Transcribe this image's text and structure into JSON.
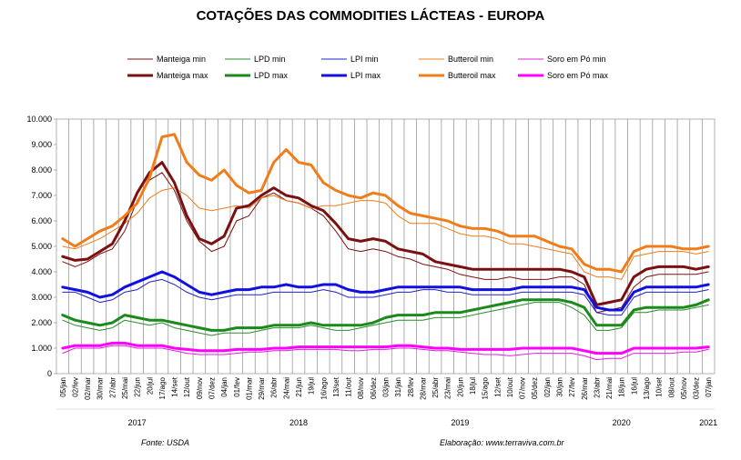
{
  "chart_data": {
    "type": "line",
    "title": "COTAÇÕES DAS COMMODITIES LÁCTEAS - EUROPA",
    "source_label": "Fonte: USDA",
    "credit_label": "Elaboração: www.terraviva.com.br",
    "ylim": [
      0,
      10000
    ],
    "grid": "vertical",
    "legend_position": "top",
    "y_ticks": [
      "0",
      "1.000",
      "2.000",
      "3.000",
      "4.000",
      "5.000",
      "6.000",
      "7.000",
      "8.000",
      "9.000",
      "10.000"
    ],
    "x_tick_labels": [
      "05/jan",
      "02/fev",
      "02/mar",
      "30/mar",
      "27/abr",
      "25/mai",
      "22/jun",
      "20/jul",
      "17/ago",
      "14/set",
      "12/out",
      "09/nov",
      "07/dez",
      "04/jan",
      "01/fev",
      "01/mar",
      "29/mar",
      "26/abr",
      "24/mai",
      "21/jun",
      "19/jul",
      "16/ago",
      "13/set",
      "11/out",
      "08/nov",
      "06/dez",
      "03/jan",
      "31/jan",
      "28/fev",
      "28/mar",
      "25/abr",
      "23/mai",
      "20/jun",
      "18/jul",
      "15/ago",
      "12/set",
      "10/out",
      "07/nov",
      "05/dez",
      "02/jan",
      "30/jan",
      "27/fev",
      "26/mar",
      "23/abr",
      "21/mai",
      "18/jun",
      "16/jul",
      "13/ago",
      "10/set",
      "08/out",
      "05/nov",
      "03/dez",
      "07/jan"
    ],
    "year_labels": [
      {
        "label": "2017",
        "at": 6
      },
      {
        "label": "2018",
        "at": 19
      },
      {
        "label": "2019",
        "at": 32
      },
      {
        "label": "2020",
        "at": 45
      },
      {
        "label": "2021",
        "at": 52
      }
    ],
    "series": [
      {
        "name": "Manteiga min",
        "color": "#7a1010",
        "style": "thin",
        "values": [
          4400,
          4200,
          4400,
          4700,
          4900,
          5600,
          6800,
          7600,
          7900,
          7200,
          6000,
          5200,
          4800,
          5000,
          6000,
          6200,
          6900,
          7100,
          6800,
          6700,
          6500,
          6200,
          5600,
          4900,
          4800,
          4900,
          4800,
          4600,
          4500,
          4300,
          4200,
          4100,
          3900,
          3800,
          3700,
          3700,
          3800,
          3700,
          3700,
          3700,
          3800,
          3800,
          3500,
          2400,
          2500,
          2600,
          3400,
          3800,
          3900,
          3900,
          3900,
          3900,
          4000
        ]
      },
      {
        "name": "LPD min",
        "color": "#2e8b2e",
        "style": "thin",
        "values": [
          2100,
          1900,
          1800,
          1700,
          1800,
          2100,
          2000,
          1900,
          2000,
          1800,
          1700,
          1600,
          1500,
          1600,
          1600,
          1600,
          1700,
          1800,
          1800,
          1800,
          1900,
          1800,
          1700,
          1700,
          1800,
          1900,
          2000,
          2100,
          2100,
          2100,
          2200,
          2200,
          2200,
          2300,
          2400,
          2500,
          2600,
          2700,
          2800,
          2800,
          2800,
          2600,
          2300,
          1700,
          1700,
          1800,
          2400,
          2400,
          2500,
          2500,
          2500,
          2600,
          2700
        ]
      },
      {
        "name": "LPI min",
        "color": "#2020cc",
        "style": "thin",
        "values": [
          3200,
          3200,
          3000,
          2800,
          2900,
          3200,
          3300,
          3600,
          3700,
          3500,
          3200,
          3000,
          2900,
          3000,
          3100,
          3100,
          3100,
          3200,
          3200,
          3200,
          3200,
          3300,
          3200,
          3000,
          3000,
          3000,
          3100,
          3200,
          3200,
          3300,
          3300,
          3200,
          3200,
          3100,
          3100,
          3100,
          3100,
          3200,
          3200,
          3200,
          3200,
          3200,
          3100,
          2400,
          2300,
          2300,
          3000,
          3200,
          3200,
          3200,
          3200,
          3200,
          3300
        ]
      },
      {
        "name": "Butteroil min",
        "color": "#f07d1a",
        "style": "thin",
        "values": [
          5000,
          4900,
          5100,
          5300,
          5600,
          5900,
          6300,
          6900,
          7200,
          7300,
          7000,
          6500,
          6400,
          6500,
          6600,
          6500,
          6900,
          7000,
          6800,
          6700,
          6500,
          6600,
          6600,
          6700,
          6800,
          6800,
          6700,
          6200,
          5900,
          5900,
          5900,
          5700,
          5500,
          5400,
          5400,
          5300,
          5100,
          5100,
          5000,
          4900,
          4800,
          4700,
          4000,
          3800,
          3800,
          3700,
          4600,
          4700,
          4800,
          4800,
          4800,
          4700,
          4800
        ]
      },
      {
        "name": "Soro em Pó min",
        "color": "#e020e0",
        "style": "thin",
        "values": [
          800,
          1000,
          1000,
          1000,
          1100,
          1100,
          1000,
          1000,
          1000,
          900,
          800,
          750,
          750,
          750,
          800,
          850,
          850,
          900,
          900,
          950,
          950,
          950,
          950,
          900,
          900,
          950,
          950,
          1000,
          1000,
          950,
          900,
          900,
          850,
          800,
          750,
          750,
          700,
          750,
          800,
          800,
          800,
          800,
          700,
          550,
          600,
          600,
          800,
          800,
          800,
          800,
          850,
          850,
          950
        ]
      },
      {
        "name": "Manteiga max",
        "color": "#7a1010",
        "style": "thick",
        "values": [
          4600,
          4450,
          4500,
          4800,
          5100,
          6000,
          7100,
          7900,
          8300,
          7500,
          6200,
          5300,
          5100,
          5400,
          6500,
          6600,
          7000,
          7300,
          7000,
          6900,
          6600,
          6400,
          5900,
          5300,
          5200,
          5300,
          5200,
          4900,
          4800,
          4700,
          4400,
          4300,
          4200,
          4100,
          4100,
          4100,
          4100,
          4100,
          4100,
          4100,
          4100,
          4000,
          3800,
          2700,
          2800,
          2900,
          3800,
          4100,
          4200,
          4200,
          4200,
          4100,
          4200
        ]
      },
      {
        "name": "LPD max",
        "color": "#1a8a1a",
        "style": "thick",
        "values": [
          2300,
          2100,
          2000,
          1900,
          2000,
          2300,
          2200,
          2100,
          2100,
          2000,
          1900,
          1800,
          1700,
          1700,
          1800,
          1800,
          1800,
          1900,
          1900,
          1900,
          2000,
          1900,
          1900,
          1900,
          1900,
          2000,
          2200,
          2300,
          2300,
          2300,
          2400,
          2400,
          2400,
          2500,
          2600,
          2700,
          2800,
          2900,
          2900,
          2900,
          2900,
          2800,
          2600,
          1900,
          1900,
          1900,
          2500,
          2600,
          2600,
          2600,
          2600,
          2700,
          2900
        ]
      },
      {
        "name": "LPI max",
        "color": "#1010e0",
        "style": "thick",
        "values": [
          3400,
          3300,
          3200,
          3000,
          3100,
          3400,
          3600,
          3800,
          4000,
          3800,
          3500,
          3200,
          3100,
          3200,
          3300,
          3300,
          3400,
          3400,
          3500,
          3400,
          3400,
          3500,
          3500,
          3300,
          3200,
          3200,
          3300,
          3400,
          3400,
          3400,
          3400,
          3400,
          3400,
          3300,
          3300,
          3300,
          3300,
          3400,
          3400,
          3400,
          3400,
          3400,
          3300,
          2600,
          2500,
          2500,
          3200,
          3400,
          3400,
          3400,
          3400,
          3400,
          3500
        ]
      },
      {
        "name": "Butteroil max",
        "color": "#f07d1a",
        "style": "thick",
        "values": [
          5300,
          5000,
          5300,
          5600,
          5800,
          6200,
          6700,
          7700,
          9300,
          9400,
          8300,
          7800,
          7600,
          8000,
          7400,
          7100,
          7200,
          8300,
          8800,
          8300,
          8200,
          7500,
          7200,
          7000,
          6900,
          7100,
          7000,
          6600,
          6300,
          6200,
          6100,
          6000,
          5800,
          5700,
          5700,
          5600,
          5400,
          5400,
          5400,
          5200,
          5000,
          4900,
          4300,
          4100,
          4100,
          4000,
          4800,
          5000,
          5000,
          5000,
          4900,
          4900,
          5000
        ]
      },
      {
        "name": "Soro em Pó max",
        "color": "#ff00ff",
        "style": "thick",
        "values": [
          1000,
          1100,
          1100,
          1100,
          1200,
          1200,
          1100,
          1100,
          1100,
          1000,
          950,
          900,
          900,
          900,
          950,
          950,
          950,
          1000,
          1000,
          1050,
          1050,
          1050,
          1050,
          1050,
          1050,
          1050,
          1050,
          1100,
          1100,
          1050,
          1000,
          1000,
          950,
          950,
          950,
          950,
          950,
          1000,
          1000,
          1000,
          1000,
          1000,
          900,
          800,
          800,
          800,
          1000,
          1000,
          1000,
          1000,
          1000,
          1000,
          1050
        ]
      }
    ]
  }
}
